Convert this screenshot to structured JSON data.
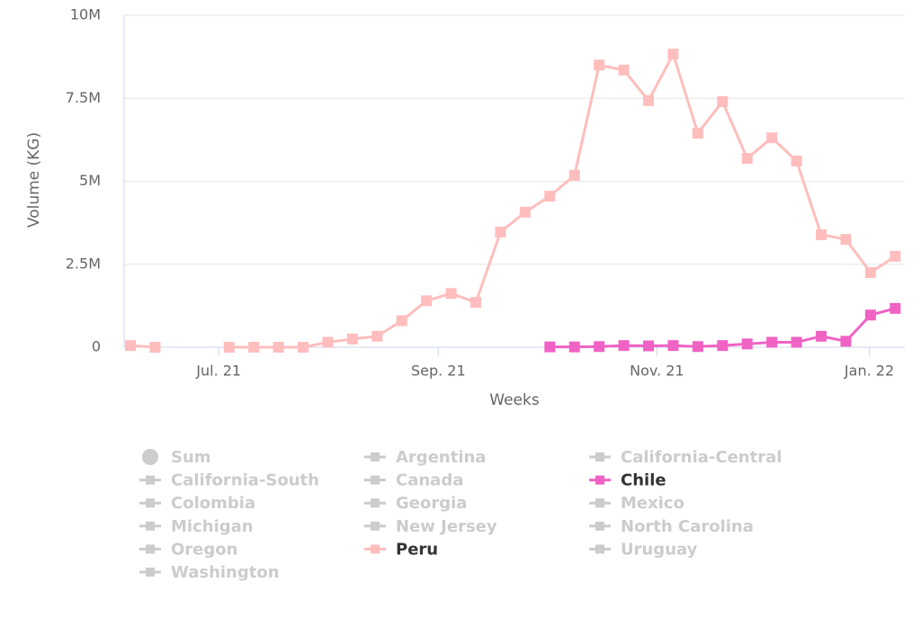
{
  "chart_data": {
    "type": "line",
    "y_label": "Volume (KG)",
    "x_label": "Weeks",
    "categories": [
      null,
      null,
      null,
      null,
      null,
      null,
      null,
      null,
      null,
      null,
      null,
      null,
      null,
      null,
      null,
      null,
      null,
      null,
      null,
      null,
      null,
      null,
      null,
      null,
      null,
      null,
      null,
      null,
      null,
      null,
      null,
      null
    ],
    "xticks": [
      {
        "value": 3.58,
        "label": "Jul. 21"
      },
      {
        "value": 12.48,
        "label": "Sep. 21"
      },
      {
        "value": 21.34,
        "label": "Nov. 21"
      },
      {
        "value": 29.95,
        "label": "Jan. 22"
      }
    ],
    "ylim": [
      0,
      10000000
    ],
    "yticks": [
      0,
      {
        "value": 2500000,
        "label": "2.5M"
      },
      {
        "value": 5000000,
        "label": "5M"
      },
      {
        "value": 7500000,
        "label": "7.5M"
      },
      {
        "value": 10000000,
        "label": "10M"
      }
    ],
    "grid": true,
    "series": [
      {
        "name": "Sum",
        "visible": false,
        "marker": "circle",
        "color": "#cccccc"
      },
      {
        "name": "Argentina",
        "visible": false,
        "color": "#cccccc"
      },
      {
        "name": "California-Central",
        "visible": false,
        "color": "#cccccc"
      },
      {
        "name": "California-South",
        "visible": false,
        "color": "#cccccc"
      },
      {
        "name": "Canada",
        "visible": false,
        "color": "#cccccc"
      },
      {
        "name": "Chile",
        "visible": true,
        "color": "#f062c4",
        "values": [
          null,
          null,
          null,
          null,
          null,
          null,
          null,
          null,
          null,
          null,
          null,
          null,
          null,
          null,
          null,
          null,
          null,
          10000,
          10000,
          20000,
          50000,
          40000,
          50000,
          20000,
          50000,
          100000,
          150000,
          150000,
          330000,
          180000,
          970000,
          1170000
        ]
      },
      {
        "name": "Colombia",
        "visible": false,
        "color": "#cccccc"
      },
      {
        "name": "Georgia",
        "visible": false,
        "color": "#cccccc"
      },
      {
        "name": "Mexico",
        "visible": false,
        "color": "#cccccc"
      },
      {
        "name": "Michigan",
        "visible": false,
        "color": "#cccccc"
      },
      {
        "name": "New Jersey",
        "visible": false,
        "color": "#cccccc"
      },
      {
        "name": "North Carolina",
        "visible": false,
        "color": "#cccccc"
      },
      {
        "name": "Oregon",
        "visible": false,
        "color": "#cccccc"
      },
      {
        "name": "Peru",
        "visible": true,
        "color": "#ffbdbd",
        "values": [
          50000,
          0,
          null,
          null,
          0,
          0,
          0,
          0,
          150000,
          250000,
          330000,
          800000,
          1400000,
          1620000,
          1350000,
          3470000,
          4070000,
          4550000,
          5180000,
          8500000,
          8350000,
          7430000,
          8830000,
          6450000,
          7400000,
          5690000,
          6310000,
          5610000,
          3390000,
          3250000,
          2250000,
          2740000
        ]
      },
      {
        "name": "Uruguay",
        "visible": false,
        "color": "#cccccc"
      },
      {
        "name": "Washington",
        "visible": false,
        "color": "#cccccc"
      }
    ]
  }
}
